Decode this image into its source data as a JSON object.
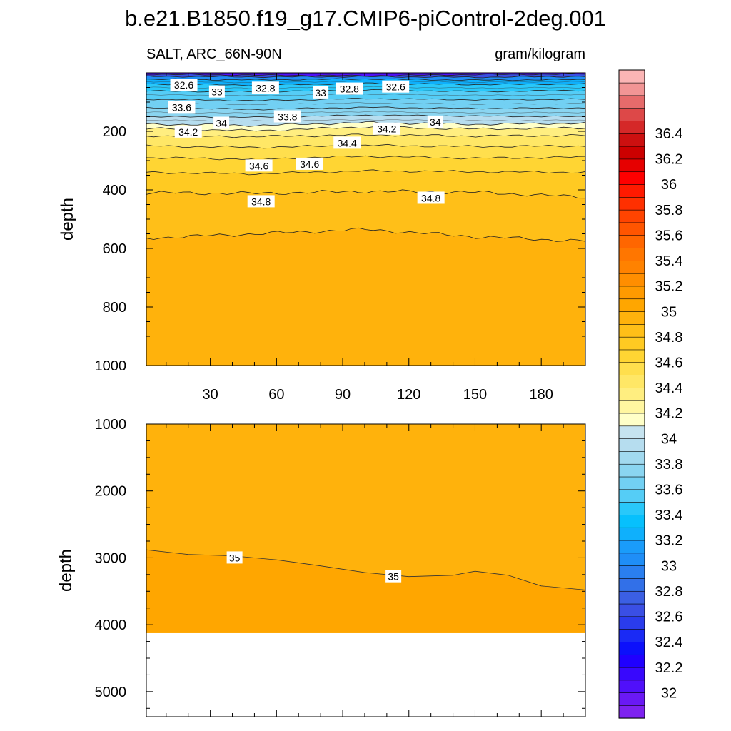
{
  "chart_data": {
    "type": "contour",
    "title": "b.e21.B1850.f19_g17.CMIP6-piControl-2deg.001",
    "left_label": "SALT, ARC_66N-90N",
    "right_label": "gram/kilogram",
    "colorbar": {
      "label_values": [
        32,
        32.2,
        32.4,
        32.6,
        32.8,
        33,
        33.2,
        33.4,
        33.6,
        33.8,
        34,
        34.2,
        34.4,
        34.6,
        34.8,
        35,
        35.2,
        35.4,
        35.6,
        35.8,
        36,
        36.2,
        36.4
      ],
      "labels": [
        "32",
        "32.2",
        "32.4",
        "32.6",
        "32.8",
        "33",
        "33.2",
        "33.4",
        "33.6",
        "33.8",
        "34",
        "34.2",
        "34.4",
        "34.6",
        "34.8",
        "35",
        "35.2",
        "35.4",
        "35.6",
        "35.8",
        "36",
        "36.2",
        "36.4"
      ],
      "levels_min": 31.9,
      "levels_step": 0.1,
      "colors": [
        "#7e22f0",
        "#6a19f5",
        "#5010fa",
        "#3808fd",
        "#2000ff",
        "#0c10fb",
        "#1a2af5",
        "#2a3cec",
        "#3a4fe4",
        "#3b5fe3",
        "#3270e8",
        "#2a7ff0",
        "#1f8ef7",
        "#1a9cfa",
        "#0fb0fc",
        "#07c0fd",
        "#29c8fa",
        "#55cdf6",
        "#72d0f3",
        "#8ad5f1",
        "#a1d9ef",
        "#b6ddef",
        "#c6e3ef",
        "#ffffc8",
        "#fff6a0",
        "#ffee80",
        "#ffe766",
        "#ffdf4d",
        "#ffd533",
        "#ffca22",
        "#ffbf18",
        "#ffb20c",
        "#ffa600",
        "#ff9a00",
        "#ff8e00",
        "#ff8200",
        "#ff7600",
        "#ff6600",
        "#ff5500",
        "#ff4400",
        "#ff3000",
        "#ff1a00",
        "#ff0000",
        "#e60000",
        "#cc0000",
        "#cc1010",
        "#d52828",
        "#dd4848",
        "#e66b6b",
        "#f29595",
        "#fbb5b5"
      ]
    },
    "panel_top": {
      "x_ticks": [
        30,
        60,
        90,
        120,
        150,
        180
      ],
      "x_tick_labels": [
        "30",
        "60",
        "90",
        "120",
        "150",
        "180"
      ],
      "xlim": [
        1,
        200
      ],
      "y_ticks": [
        200,
        400,
        600,
        800,
        1000
      ],
      "y_tick_labels": [
        "200",
        "400",
        "600",
        "800",
        "1000"
      ],
      "ylim": [
        0,
        1000
      ],
      "ylabel": "depth",
      "background_color": "#ffb20c",
      "bands": [
        {
          "depth": [
            5,
            8,
            10,
            6,
            4
          ],
          "color": "#5010fa"
        },
        {
          "depth": [
            12,
            14,
            13,
            15,
            12
          ],
          "color": "#3a4fe4"
        },
        {
          "depth": [
            22,
            24,
            21,
            25,
            23
          ],
          "color": "#1f8ef7"
        },
        {
          "depth": [
            38,
            42,
            36,
            40,
            38
          ],
          "color": "#0fb0fc"
        },
        {
          "depth": [
            62,
            65,
            58,
            64,
            60
          ],
          "color": "#29c8fa"
        },
        {
          "depth": [
            90,
            95,
            88,
            92,
            90
          ],
          "color": "#55cdf6"
        },
        {
          "depth": [
            120,
            125,
            118,
            122,
            120
          ],
          "color": "#72d0f3"
        },
        {
          "depth": [
            150,
            152,
            145,
            148,
            150
          ],
          "color": "#8ad5f1"
        },
        {
          "depth": [
            175,
            180,
            170,
            176,
            172
          ],
          "color": "#b6ddef"
        },
        {
          "depth": [
            190,
            198,
            185,
            192,
            188
          ],
          "color": "#ffffc8"
        },
        {
          "depth": [
            215,
            218,
            212,
            216,
            214
          ],
          "color": "#ffee80"
        },
        {
          "depth": [
            250,
            255,
            248,
            252,
            250
          ],
          "color": "#ffe766"
        },
        {
          "depth": [
            290,
            295,
            285,
            292,
            288
          ],
          "color": "#ffdf4d"
        },
        {
          "depth": [
            340,
            345,
            335,
            338,
            340
          ],
          "color": "#ffd533"
        },
        {
          "depth": [
            410,
            412,
            405,
            408,
            425
          ],
          "color": "#ffca22"
        },
        {
          "depth": [
            565,
            550,
            535,
            560,
            575
          ],
          "color": "#ffbf18"
        }
      ],
      "contour_labels": [
        {
          "x": 18,
          "depth": 42,
          "text": "32.6"
        },
        {
          "x": 33,
          "depth": 65,
          "text": "33"
        },
        {
          "x": 55,
          "depth": 52,
          "text": "32.8"
        },
        {
          "x": 80,
          "depth": 68,
          "text": "33"
        },
        {
          "x": 93,
          "depth": 55,
          "text": "32.8"
        },
        {
          "x": 114,
          "depth": 48,
          "text": "32.6"
        },
        {
          "x": 17,
          "depth": 118,
          "text": "33.6"
        },
        {
          "x": 35,
          "depth": 172,
          "text": "34"
        },
        {
          "x": 65,
          "depth": 150,
          "text": "33.8"
        },
        {
          "x": 132,
          "depth": 168,
          "text": "34"
        },
        {
          "x": 20,
          "depth": 202,
          "text": "34.2"
        },
        {
          "x": 110,
          "depth": 192,
          "text": "34.2"
        },
        {
          "x": 92,
          "depth": 240,
          "text": "34.4"
        },
        {
          "x": 52,
          "depth": 318,
          "text": "34.6"
        },
        {
          "x": 75,
          "depth": 312,
          "text": "34.6"
        },
        {
          "x": 53,
          "depth": 440,
          "text": "34.8"
        },
        {
          "x": 130,
          "depth": 428,
          "text": "34.8"
        }
      ]
    },
    "panel_bottom": {
      "xlim": [
        1,
        200
      ],
      "x_ticks": [
        30,
        60,
        90,
        120,
        150,
        180
      ],
      "y_ticks": [
        1000,
        2000,
        3000,
        4000,
        5000
      ],
      "y_tick_labels": [
        "1000",
        "2000",
        "3000",
        "4000",
        "5000"
      ],
      "ylim": [
        1000,
        5375
      ],
      "ylabel": "depth",
      "background_color": "#ffb20c",
      "deep_color": "#ffa600",
      "data_bottom_depth": 4125,
      "contour_35": [
        {
          "x": 1,
          "depth": 2880
        },
        {
          "x": 20,
          "depth": 2950
        },
        {
          "x": 40,
          "depth": 2970
        },
        {
          "x": 60,
          "depth": 3030
        },
        {
          "x": 80,
          "depth": 3120
        },
        {
          "x": 100,
          "depth": 3220
        },
        {
          "x": 120,
          "depth": 3280
        },
        {
          "x": 140,
          "depth": 3260
        },
        {
          "x": 150,
          "depth": 3200
        },
        {
          "x": 165,
          "depth": 3260
        },
        {
          "x": 180,
          "depth": 3420
        },
        {
          "x": 200,
          "depth": 3480
        }
      ],
      "contour_labels": [
        {
          "x": 41,
          "depth": 3000,
          "text": "35"
        },
        {
          "x": 113,
          "depth": 3280,
          "text": "35"
        }
      ]
    }
  }
}
